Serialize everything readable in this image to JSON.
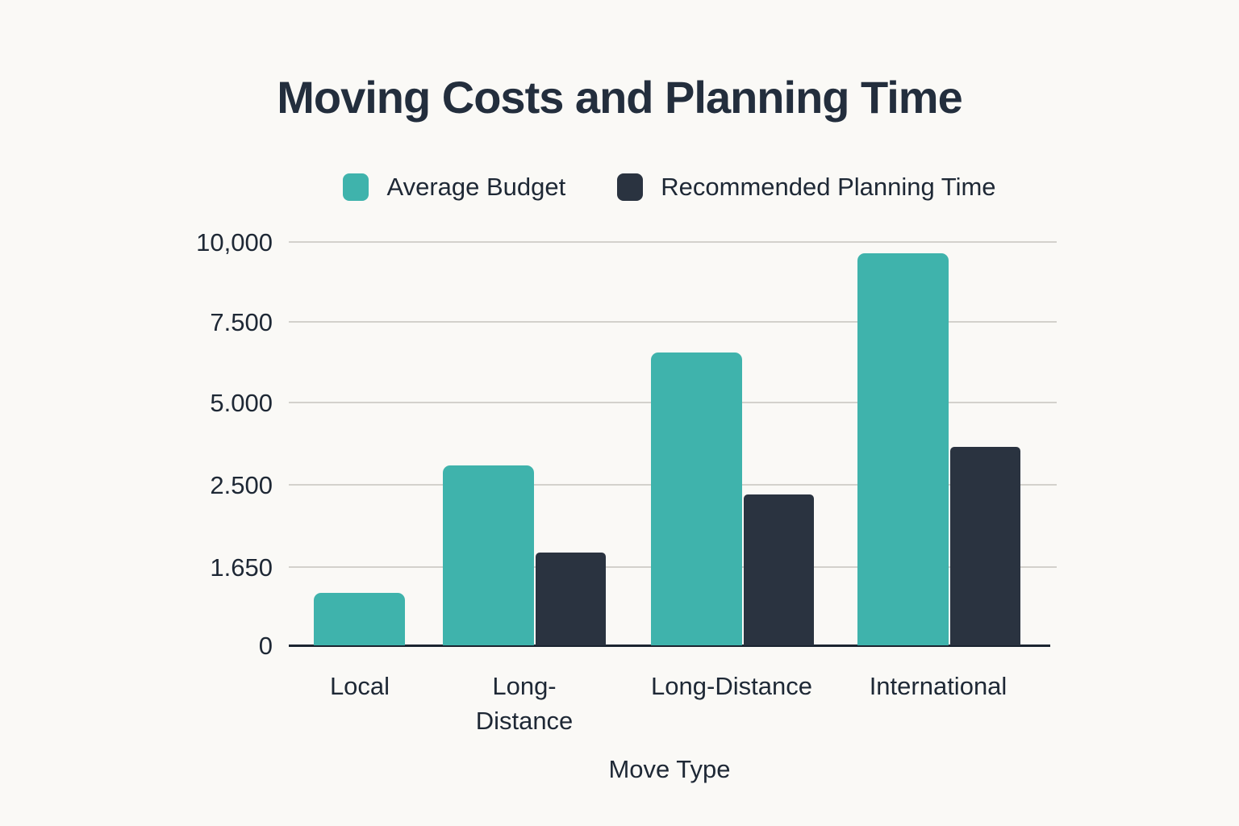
{
  "page": {
    "background_color": "#FAF9F6",
    "text_color": "#1E2835"
  },
  "chart_data": {
    "type": "bar",
    "title": "Moving Costs and Planning Time",
    "xlabel": "Move Type",
    "ylabel": "",
    "categories": [
      "Local",
      "Long-Distance",
      "Long-Distance",
      "International"
    ],
    "series": [
      {
        "name": "Average Budget",
        "color": "#3FB3AC",
        "values": [
          1100,
          3100,
          6550,
          9650
        ]
      },
      {
        "name": "Recommended Planning Time",
        "color": "#2A3340",
        "values": [
          null,
          1800,
          2400,
          3650
        ]
      }
    ],
    "y_axis": {
      "ticks": [
        {
          "label": "0",
          "value": 0
        },
        {
          "label": "1.650",
          "value": 1650
        },
        {
          "label": "2.500",
          "value": 2500
        },
        {
          "label": "5.000",
          "value": 5000
        },
        {
          "label": "7.500",
          "value": 7500
        },
        {
          "label": "10,000",
          "value": 10000
        }
      ],
      "scale_note": "ticks are evenly spaced on screen (non-linear value axis)"
    },
    "legend_position": "top",
    "grid": true,
    "gridline_color": "#D3D1CC",
    "axis_color": "#1B2430"
  }
}
